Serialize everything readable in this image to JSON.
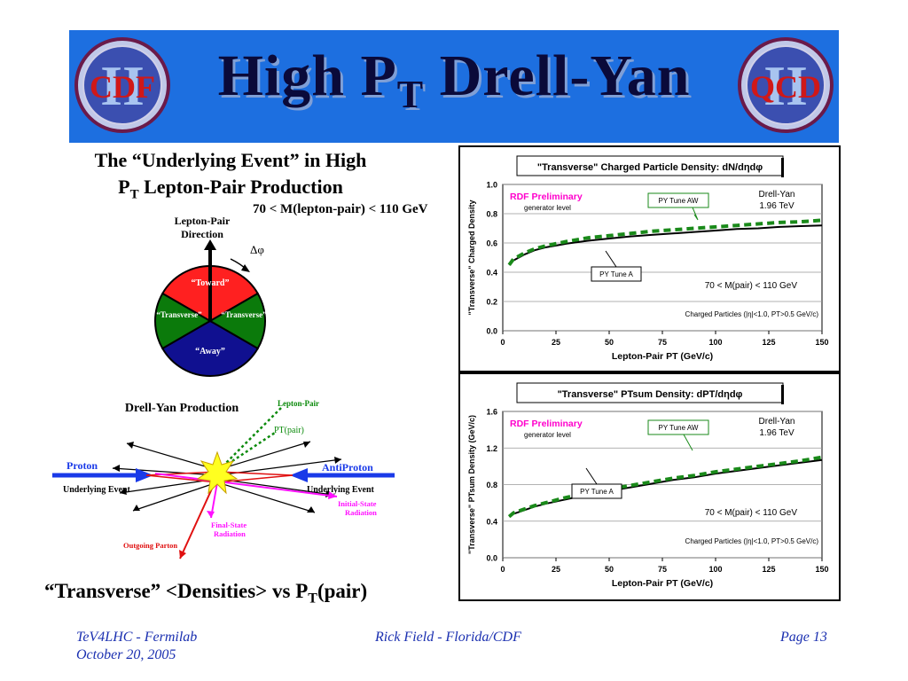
{
  "slide": {
    "title_main": "High P",
    "title_sub": "T",
    "title_tail": " Drell-Yan",
    "logo_left_text": "CDF",
    "logo_right_text": "QCD",
    "logo_numeral": "II"
  },
  "left_panel": {
    "heading_line1": "The “Underlying Event” in High",
    "heading_line2_main": "P",
    "heading_line2_sub": "T",
    "heading_line2_tail": " Lepton-Pair Production",
    "mass_window": "70 < M(lepton-pair) < 110 GeV",
    "pie": {
      "direction_label_1": "Lepton-Pair",
      "direction_label_2": "Direction",
      "delta_phi": "Δφ",
      "toward": "“Toward”",
      "transverse_left": "“Transverse”",
      "transverse_right": "“Transverse”",
      "away": "“Away”",
      "colors": {
        "toward": "#ff2222",
        "transverse": "#0b7a0b",
        "away": "#101090"
      }
    },
    "dy": {
      "title": "Drell-Yan Production",
      "lepton_pair": "Lepton-Pair",
      "pt_pair": "PT(pair)",
      "proton": "Proton",
      "antiproton": "AntiProton",
      "underlying_left": "Underlying Event",
      "underlying_right": "Underlying Event",
      "isr_1": "Initial-State",
      "isr_2": "Radiation",
      "fsr_1": "Final-State",
      "fsr_2": "Radiation",
      "outgoing": "Outgoing Parton"
    },
    "caption_main": "“Transverse” <Densities> vs P",
    "caption_sub": "T",
    "caption_tail": "(pair)"
  },
  "chart_data": [
    {
      "type": "line",
      "title": "\"Transverse\" Charged Particle Density: dN/dηdφ",
      "xlabel": "Lepton-Pair PT  (GeV/c)",
      "ylabel": "\"Transverse\" Charged Density",
      "xlim": [
        0,
        150
      ],
      "ylim": [
        0.0,
        1.0
      ],
      "xticks": [
        "0",
        "25",
        "50",
        "75",
        "100",
        "125",
        "150"
      ],
      "yticks": [
        "0.0",
        "0.2",
        "0.4",
        "0.6",
        "0.8",
        "1.0"
      ],
      "annotations": {
        "preliminary": "RDF Preliminary",
        "generator": "generator level",
        "dy_label_1": "Drell-Yan",
        "dy_label_2": "1.96 TeV",
        "mass_cut": "70 < M(pair) < 110 GeV",
        "cuts": "Charged Particles (|η|<1.0, PT>0.5 GeV/c)",
        "tune_aw": "PY Tune AW",
        "tune_a": "PY Tune A"
      },
      "series": [
        {
          "name": "PY Tune A",
          "color": "#000000",
          "dash": false,
          "x": [
            3,
            5,
            10,
            15,
            20,
            30,
            40,
            50,
            60,
            70,
            80,
            90,
            100,
            110,
            120,
            130,
            140,
            150
          ],
          "y": [
            0.45,
            0.48,
            0.52,
            0.55,
            0.57,
            0.595,
            0.615,
            0.63,
            0.645,
            0.655,
            0.665,
            0.675,
            0.685,
            0.695,
            0.7,
            0.71,
            0.715,
            0.72
          ]
        },
        {
          "name": "PY Tune AW",
          "color": "#1a8a1a",
          "dash": true,
          "x": [
            3,
            5,
            10,
            15,
            20,
            30,
            40,
            50,
            60,
            70,
            80,
            90,
            100,
            110,
            120,
            130,
            140,
            150
          ],
          "y": [
            0.45,
            0.49,
            0.53,
            0.56,
            0.58,
            0.61,
            0.635,
            0.65,
            0.665,
            0.68,
            0.69,
            0.7,
            0.71,
            0.72,
            0.73,
            0.74,
            0.745,
            0.755
          ]
        }
      ]
    },
    {
      "type": "line",
      "title": "\"Transverse\" PTsum Density: dPT/dηdφ",
      "xlabel": "Lepton-Pair PT  (GeV/c)",
      "ylabel": "\"Transverse\" PTsum Density (GeV/c)",
      "xlim": [
        0,
        150
      ],
      "ylim": [
        0.0,
        1.6
      ],
      "xticks": [
        "0",
        "25",
        "50",
        "75",
        "100",
        "125",
        "150"
      ],
      "yticks": [
        "0.0",
        "0.4",
        "0.8",
        "1.2",
        "1.6"
      ],
      "annotations": {
        "preliminary": "RDF Preliminary",
        "generator": "generator level",
        "dy_label_1": "Drell-Yan",
        "dy_label_2": "1.96 TeV",
        "mass_cut": "70 < M(pair) < 110 GeV",
        "cuts": "Charged Particles (|η|<1.0, PT>0.5 GeV/c)",
        "tune_aw": "PY Tune AW",
        "tune_a": "PY Tune A"
      },
      "series": [
        {
          "name": "PY Tune A",
          "color": "#000000",
          "dash": false,
          "x": [
            3,
            5,
            10,
            15,
            20,
            30,
            40,
            50,
            60,
            70,
            80,
            90,
            100,
            110,
            120,
            130,
            140,
            150
          ],
          "y": [
            0.45,
            0.48,
            0.52,
            0.56,
            0.59,
            0.64,
            0.69,
            0.73,
            0.77,
            0.81,
            0.85,
            0.88,
            0.92,
            0.95,
            0.98,
            1.01,
            1.04,
            1.07
          ]
        },
        {
          "name": "PY Tune AW",
          "color": "#1a8a1a",
          "dash": true,
          "x": [
            3,
            5,
            10,
            15,
            20,
            30,
            40,
            50,
            60,
            70,
            80,
            90,
            100,
            110,
            120,
            130,
            140,
            150
          ],
          "y": [
            0.45,
            0.49,
            0.53,
            0.57,
            0.6,
            0.66,
            0.71,
            0.75,
            0.79,
            0.83,
            0.87,
            0.9,
            0.94,
            0.97,
            1.0,
            1.03,
            1.06,
            1.1
          ]
        }
      ]
    }
  ],
  "footer": {
    "left_1": "TeV4LHC - Fermilab",
    "left_2": "October 20, 2005",
    "center": "Rick Field - Florida/CDF",
    "right": "Page 13"
  }
}
